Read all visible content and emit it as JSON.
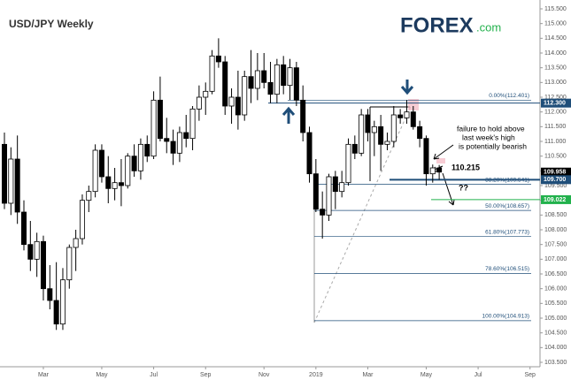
{
  "chart_data": {
    "type": "candlestick",
    "title": "USD/JPY Weekly",
    "logo": {
      "brand": "FOREX",
      "suffix": ".com"
    },
    "categories": [
      null,
      null,
      null,
      null,
      null,
      null,
      "Mar",
      null,
      null,
      null,
      null,
      null,
      null,
      null,
      null,
      "May",
      null,
      null,
      null,
      null,
      null,
      null,
      null,
      "Jul",
      null,
      null,
      null,
      null,
      null,
      null,
      null,
      "Sep",
      null,
      null,
      null,
      null,
      null,
      null,
      null,
      null,
      "Nov",
      null,
      null,
      null,
      null,
      null,
      null,
      null,
      "2019",
      null,
      null,
      null,
      null,
      null,
      null,
      null,
      "Mar",
      null,
      null,
      null,
      null,
      null,
      null,
      null,
      null,
      "May",
      null,
      null,
      null,
      null,
      null,
      null,
      null,
      "Jul",
      null,
      null,
      null,
      null,
      null,
      null,
      null,
      "Sep"
    ],
    "open": [
      110.9,
      108.9,
      110.4,
      108.6,
      107.5,
      107.0,
      107.6,
      106.0,
      105.6,
      104.8,
      106.3,
      107.4,
      107.7,
      109.0,
      109.3,
      110.7,
      109.8,
      109.4,
      109.6,
      109.5,
      110.5,
      110.0,
      110.9,
      110.5,
      112.4,
      111.1,
      111.0,
      110.6,
      111.3,
      111.1,
      112.1,
      112.5,
      112.7,
      113.9,
      113.7,
      112.2,
      112.5,
      111.9,
      113.2,
      112.8,
      113.4,
      113.0,
      112.6,
      113.6,
      112.9,
      113.5,
      112.4,
      111.3,
      109.9,
      108.7,
      108.5,
      109.8,
      109.3,
      109.6,
      110.9,
      110.6,
      111.9,
      111.3,
      111.5,
      110.9,
      111.0,
      111.9,
      111.8,
      112.0,
      111.5,
      111.1,
      109.9,
      110.1,
      null,
      null,
      null,
      null,
      null,
      null,
      null,
      null,
      null,
      null,
      null,
      null,
      null,
      null
    ],
    "high": [
      111.3,
      110.8,
      111.2,
      109.0,
      108.3,
      107.9,
      107.8,
      106.8,
      106.9,
      106.7,
      107.5,
      108.0,
      109.2,
      109.5,
      110.9,
      110.9,
      110.5,
      110.1,
      110.4,
      110.6,
      110.9,
      111.1,
      111.2,
      112.7,
      113.2,
      111.8,
      111.4,
      111.5,
      111.9,
      112.2,
      112.9,
      113.0,
      114.1,
      114.5,
      113.9,
      112.8,
      113.4,
      113.4,
      114.1,
      114.0,
      114.0,
      113.7,
      113.8,
      113.9,
      113.8,
      113.7,
      112.9,
      111.5,
      110.4,
      109.3,
      109.9,
      110.0,
      110.0,
      111.1,
      111.2,
      112.1,
      112.1,
      111.7,
      111.9,
      111.3,
      112.2,
      112.1,
      112.4,
      112.2,
      111.7,
      111.2,
      110.215,
      110.2,
      null,
      null,
      null,
      null,
      null,
      null,
      null,
      null,
      null,
      null,
      null,
      null,
      null,
      null
    ],
    "low": [
      108.7,
      108.5,
      108.2,
      107.3,
      106.6,
      106.4,
      105.6,
      105.3,
      104.6,
      104.6,
      106.0,
      106.6,
      107.5,
      108.6,
      109.1,
      109.6,
      108.9,
      109.0,
      108.8,
      109.4,
      109.8,
      109.7,
      110.3,
      110.4,
      111.0,
      110.6,
      110.2,
      110.3,
      110.8,
      110.7,
      111.7,
      111.9,
      112.6,
      113.5,
      111.9,
      111.6,
      111.4,
      111.7,
      112.3,
      112.4,
      112.8,
      112.3,
      112.3,
      112.6,
      112.4,
      112.2,
      111.0,
      109.6,
      108.6,
      107.7,
      108.3,
      108.7,
      109.1,
      109.5,
      110.4,
      110.5,
      111.0,
      110.5,
      110.0,
      110.7,
      110.8,
      111.6,
      111.6,
      111.4,
      110.8,
      109.5,
      109.6,
      109.7,
      null,
      null,
      null,
      null,
      null,
      null,
      null,
      null,
      null,
      null,
      null,
      null,
      null,
      null
    ],
    "close": [
      108.9,
      110.4,
      108.6,
      107.5,
      107.0,
      107.6,
      106.0,
      105.6,
      104.8,
      106.3,
      107.4,
      107.7,
      109.0,
      109.3,
      110.7,
      109.8,
      109.4,
      109.6,
      109.5,
      110.5,
      110.0,
      110.9,
      110.5,
      112.4,
      111.1,
      111.0,
      110.6,
      111.3,
      111.1,
      112.1,
      112.5,
      112.7,
      113.9,
      113.7,
      112.2,
      112.5,
      111.9,
      113.2,
      112.8,
      113.4,
      113.0,
      112.6,
      113.6,
      112.9,
      113.5,
      112.4,
      111.3,
      109.9,
      108.7,
      108.5,
      109.8,
      109.3,
      109.6,
      110.9,
      110.6,
      111.9,
      111.3,
      111.5,
      110.9,
      111.0,
      111.9,
      111.8,
      112.0,
      111.5,
      111.1,
      109.9,
      110.1,
      109.958,
      null,
      null,
      null,
      null,
      null,
      null,
      null,
      null,
      null,
      null,
      null,
      null,
      null,
      null
    ],
    "up_color": "#ffffff",
    "down_color": "#000000",
    "ylim": [
      103.5,
      115.5
    ],
    "yticks": [
      {
        "value": 103.5,
        "label": "103.500"
      },
      {
        "value": 104,
        "label": "104.000"
      },
      {
        "value": 104.5,
        "label": "104.500"
      },
      {
        "value": 105,
        "label": "105.000"
      },
      {
        "value": 105.5,
        "label": "105.500"
      },
      {
        "value": 106,
        "label": "106.000"
      },
      {
        "value": 106.5,
        "label": "106.500"
      },
      {
        "value": 107,
        "label": "107.000"
      },
      {
        "value": 107.5,
        "label": "107.500"
      },
      {
        "value": 108,
        "label": "108.000"
      },
      {
        "value": 108.5,
        "label": "108.500"
      },
      {
        "value": 109,
        "label": "109.000"
      },
      {
        "value": 109.5,
        "label": "109.500"
      },
      {
        "value": 110,
        "label": "110.000"
      },
      {
        "value": 110.5,
        "label": "110.500"
      },
      {
        "value": 111,
        "label": "111.000"
      },
      {
        "value": 111.5,
        "label": "111.500"
      },
      {
        "value": 112,
        "label": "112.000"
      },
      {
        "value": 112.5,
        "label": "112.500"
      },
      {
        "value": 113,
        "label": "113.000"
      },
      {
        "value": 113.5,
        "label": "113.500"
      },
      {
        "value": 114,
        "label": "114.000"
      },
      {
        "value": 114.5,
        "label": "114.500"
      },
      {
        "value": 115,
        "label": "115.000"
      },
      {
        "value": 115.5,
        "label": "115.500"
      }
    ],
    "levels": [
      {
        "value": 112.3,
        "label": "112.300",
        "color": "#1f4e79"
      },
      {
        "value": 109.958,
        "label": "109.958",
        "color": "#000000"
      },
      {
        "value": 109.7,
        "label": "109.700",
        "color": "#1f4e79"
      },
      {
        "value": 109.022,
        "label": "109.022",
        "color": "#22b14c"
      }
    ],
    "fib_levels": [
      {
        "value": 112.401,
        "label": "0.00%(112.401)"
      },
      {
        "value": 109.541,
        "label": "38.20%(109.541)"
      },
      {
        "value": 108.657,
        "label": "50.00%(108.657)"
      },
      {
        "value": 107.773,
        "label": "61.80%(107.773)"
      },
      {
        "value": 106.515,
        "label": "78.60%(106.515)"
      },
      {
        "value": 104.913,
        "label": "100.00%(104.913)"
      }
    ],
    "annotation": [
      "failure to hold above",
      "last week's high",
      "is potentially bearish"
    ],
    "high_label": {
      "value": 110.215,
      "label": "110.215"
    },
    "question": "??"
  }
}
